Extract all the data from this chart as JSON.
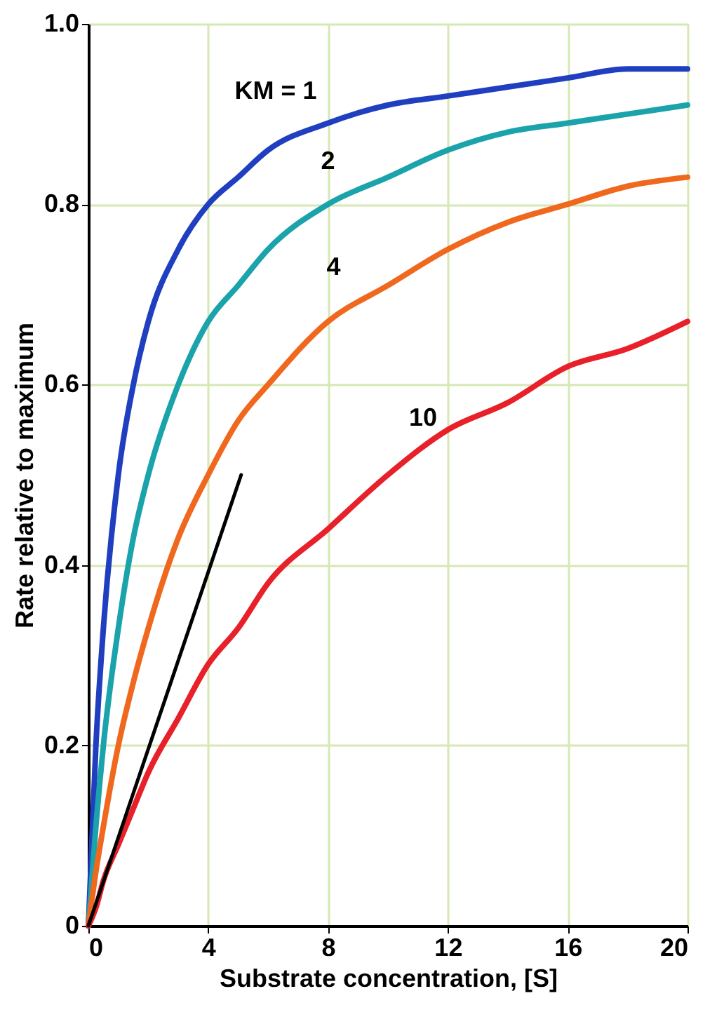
{
  "chart_data": {
    "type": "line",
    "xlabel": "Substrate concentration, [S]",
    "ylabel": "Rate relative to maximum",
    "x": [
      0,
      0.25,
      0.5,
      1,
      1.5,
      2,
      3,
      4,
      5,
      6,
      8,
      10,
      12,
      14,
      16,
      18,
      20
    ],
    "series": [
      {
        "name": "KM = 1",
        "color": "#1f3fc0",
        "values": [
          0,
          0.2,
          0.33,
          0.5,
          0.6,
          0.67,
          0.75,
          0.8,
          0.83,
          0.86,
          0.89,
          0.91,
          0.92,
          0.93,
          0.94,
          0.95,
          0.95
        ]
      },
      {
        "name": "2",
        "color": "#1aa3ab",
        "values": [
          0,
          0.11,
          0.2,
          0.33,
          0.43,
          0.5,
          0.6,
          0.67,
          0.71,
          0.75,
          0.8,
          0.83,
          0.86,
          0.88,
          0.89,
          0.9,
          0.91
        ]
      },
      {
        "name": "4",
        "color": "#f0681e",
        "values": [
          0,
          0.06,
          0.11,
          0.2,
          0.27,
          0.33,
          0.43,
          0.5,
          0.56,
          0.6,
          0.67,
          0.71,
          0.75,
          0.78,
          0.8,
          0.82,
          0.83
        ]
      },
      {
        "name": "10",
        "color": "#e8202a",
        "values": [
          0,
          0.02,
          0.05,
          0.09,
          0.13,
          0.17,
          0.23,
          0.29,
          0.33,
          0.38,
          0.44,
          0.5,
          0.55,
          0.58,
          0.62,
          0.64,
          0.67
        ]
      },
      {
        "color": "#000000",
        "x": [
          0,
          5.1
        ],
        "values": [
          0,
          0.5
        ]
      }
    ],
    "xlim": [
      0,
      20
    ],
    "xticks": [
      0,
      4,
      8,
      12,
      16,
      20
    ],
    "ylim": [
      0,
      1
    ],
    "yticks": [
      0,
      0.2,
      0.4,
      0.6,
      0.8,
      {
        "value": 1,
        "label": "1.0"
      }
    ],
    "grid": true,
    "line_style": "solid",
    "marker": "none"
  }
}
